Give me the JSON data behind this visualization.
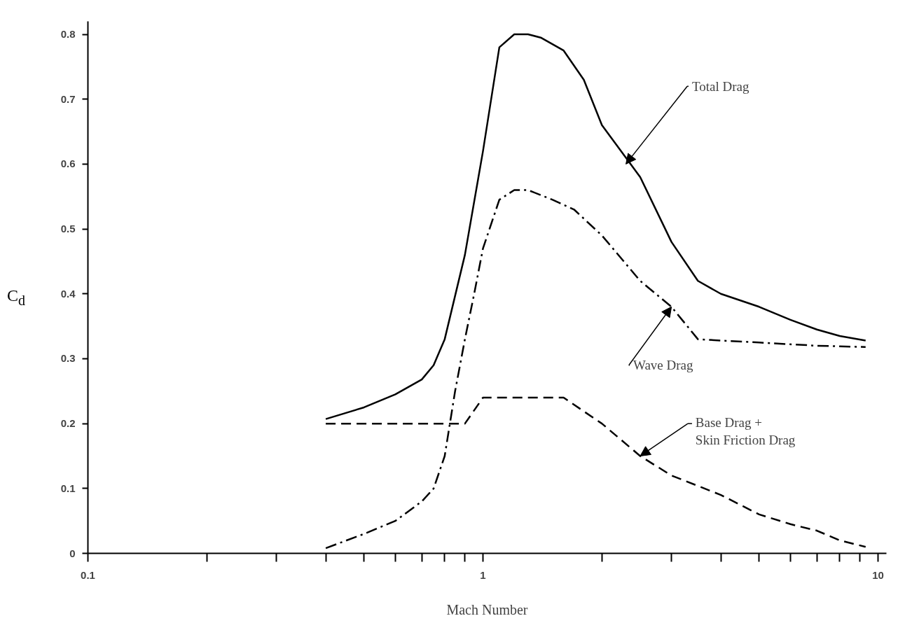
{
  "chart_data": {
    "type": "line",
    "xlabel": "Mach Number",
    "ylabel": "C$_{d}$",
    "log": "x",
    "grid": false,
    "marker": "none",
    "xlim": [
      0.1,
      10.5
    ],
    "ylim": [
      0,
      0.82
    ],
    "xticks": [
      0.1,
      {
        "value": 0.2,
        "label": null
      },
      {
        "value": 0.3,
        "label": null
      },
      {
        "value": 0.4,
        "label": null
      },
      {
        "value": 0.5,
        "label": null
      },
      {
        "value": 0.6,
        "label": null
      },
      {
        "value": 0.7,
        "label": null
      },
      {
        "value": 0.8,
        "label": null
      },
      {
        "value": 0.9,
        "label": null
      },
      1,
      {
        "value": 2,
        "label": null
      },
      {
        "value": 3,
        "label": null
      },
      {
        "value": 4,
        "label": null
      },
      {
        "value": 5,
        "label": null
      },
      {
        "value": 6,
        "label": null
      },
      {
        "value": 7,
        "label": null
      },
      {
        "value": 8,
        "label": null
      },
      {
        "value": 9,
        "label": null
      },
      10
    ],
    "yticks": [
      0,
      0.1,
      0.2,
      0.3,
      0.4,
      0.5,
      0.6,
      0.7,
      0.8
    ],
    "series": [
      {
        "color": "#000000",
        "line_style": "solid",
        "x": [
          0.4,
          0.5,
          0.6,
          0.7,
          0.75,
          0.8,
          0.9,
          1.0,
          1.1,
          1.2,
          1.3,
          1.4,
          1.6,
          1.8,
          2.0,
          2.5,
          3.0,
          3.5,
          4,
          5,
          6,
          7,
          8,
          9.3
        ],
        "values": [
          0.207,
          0.225,
          0.245,
          0.268,
          0.29,
          0.33,
          0.46,
          0.62,
          0.78,
          0.8,
          0.8,
          0.795,
          0.775,
          0.73,
          0.66,
          0.58,
          0.48,
          0.42,
          0.4,
          0.38,
          0.36,
          0.345,
          0.335,
          0.328
        ]
      },
      {
        "color": "#000000",
        "line_style": "dashdot",
        "x": [
          0.4,
          0.5,
          0.6,
          0.7,
          0.75,
          0.8,
          0.85,
          0.9,
          0.95,
          1.0,
          1.1,
          1.2,
          1.3,
          1.5,
          1.7,
          2.0,
          2.5,
          3.0,
          3.5,
          4,
          5,
          7,
          9.3
        ],
        "values": [
          0.008,
          0.03,
          0.05,
          0.08,
          0.1,
          0.15,
          0.25,
          0.33,
          0.4,
          0.47,
          0.545,
          0.56,
          0.56,
          0.545,
          0.53,
          0.49,
          0.42,
          0.38,
          0.33,
          0.328,
          0.325,
          0.32,
          0.318
        ]
      },
      {
        "color": "#000000",
        "line_style": "dashed",
        "x": [
          0.4,
          0.9,
          1.0,
          1.6,
          2.0,
          2.5,
          3,
          4,
          5,
          6,
          7,
          8,
          9.3
        ],
        "values": [
          0.2,
          0.2,
          0.24,
          0.24,
          0.2,
          0.15,
          0.12,
          0.09,
          0.06,
          0.045,
          0.035,
          0.02,
          0.01
        ]
      }
    ],
    "annotations": [
      {
        "text": "Total Drag",
        "x": 2.3,
        "y": 0.6
      },
      {
        "text": "Wave Drag",
        "x": 3.0,
        "y": 0.38
      },
      {
        "text": "Base Drag +\nSkin Friction Drag",
        "x": 2.5,
        "y": 0.15
      }
    ]
  }
}
